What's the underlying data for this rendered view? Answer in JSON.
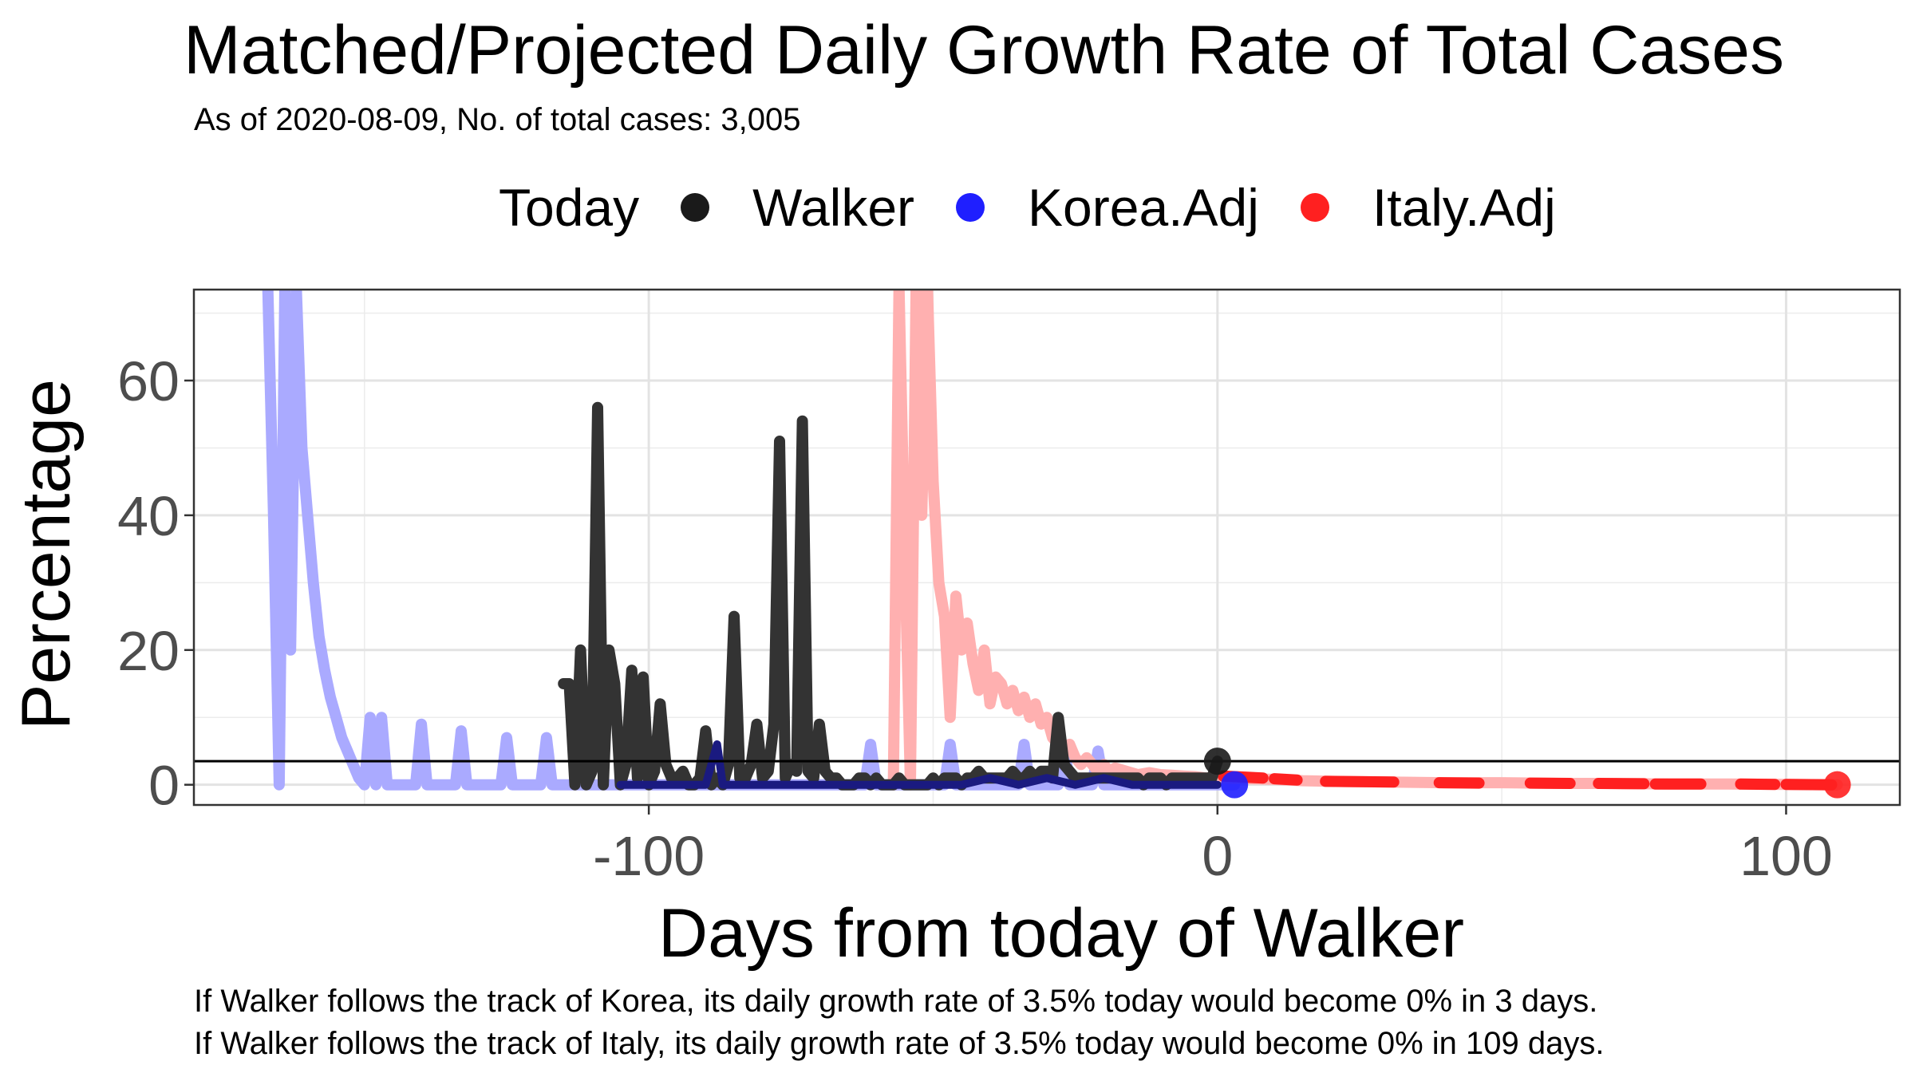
{
  "chart_data": {
    "type": "line",
    "title": "Matched/Projected Daily Growth Rate of Total Cases",
    "subtitle": "As of 2020-08-09, No. of total cases: 3,005",
    "xlabel": "Days from today of Walker",
    "ylabel": "Percentage",
    "xlim": [
      -180,
      120
    ],
    "ylim": [
      -3,
      73.5
    ],
    "x_ticks": [
      -100,
      0,
      100
    ],
    "x_tick_labels": [
      "-100",
      "0",
      "100"
    ],
    "y_ticks": [
      0,
      20,
      40,
      60
    ],
    "y_tick_labels": [
      "0",
      "20",
      "40",
      "60"
    ],
    "grid": true,
    "legend": {
      "title": "Today",
      "placement": "top",
      "entries": [
        {
          "label": "Walker",
          "color": "#1a1a1a"
        },
        {
          "label": "Korea.Adj",
          "color": "#1f1fff"
        },
        {
          "label": "Italy.Adj",
          "color": "#ff2020"
        }
      ]
    },
    "reference_line": {
      "y": 3.5
    },
    "today_points": [
      {
        "series": "Walker",
        "x": 0,
        "y": 3.5,
        "color": "#1a1a1a"
      },
      {
        "series": "Korea.Adj",
        "x": 3,
        "y": 0,
        "color": "#1f1fff"
      },
      {
        "series": "Italy.Adj",
        "x": 109,
        "y": 0,
        "color": "#ff2020"
      }
    ],
    "series": [
      {
        "name": "Korea.Adj",
        "color": "#aaaaff",
        "points": [
          [
            -167,
            75
          ],
          [
            -166,
            40
          ],
          [
            -165,
            0
          ],
          [
            -164,
            75
          ],
          [
            -163,
            20
          ],
          [
            -162,
            75
          ],
          [
            -161,
            50
          ],
          [
            -160,
            40
          ],
          [
            -159,
            30
          ],
          [
            -158,
            22
          ],
          [
            -157,
            17
          ],
          [
            -156,
            13
          ],
          [
            -155,
            10
          ],
          [
            -154,
            7
          ],
          [
            -153,
            5
          ],
          [
            -152,
            3
          ],
          [
            -151,
            1
          ],
          [
            -150,
            0
          ],
          [
            -149,
            10
          ],
          [
            -148,
            0
          ],
          [
            -147,
            10
          ],
          [
            -146,
            0
          ],
          [
            -145,
            0
          ],
          [
            -144,
            0
          ],
          [
            -143,
            0
          ],
          [
            -142,
            0
          ],
          [
            -141,
            0
          ],
          [
            -140,
            9
          ],
          [
            -139,
            0
          ],
          [
            -138,
            0
          ],
          [
            -137,
            0
          ],
          [
            -136,
            0
          ],
          [
            -135,
            0
          ],
          [
            -134,
            0
          ],
          [
            -133,
            8
          ],
          [
            -132,
            0
          ],
          [
            -131,
            0
          ],
          [
            -130,
            0
          ],
          [
            -129,
            0
          ],
          [
            -128,
            0
          ],
          [
            -127,
            0
          ],
          [
            -126,
            0
          ],
          [
            -125,
            7
          ],
          [
            -124,
            0
          ],
          [
            -123,
            0
          ],
          [
            -122,
            0
          ],
          [
            -121,
            0
          ],
          [
            -120,
            0
          ],
          [
            -119,
            0
          ],
          [
            -118,
            7
          ],
          [
            -117,
            0
          ],
          [
            -116,
            0
          ],
          [
            -115,
            0
          ],
          [
            -110,
            0
          ],
          [
            -105,
            0
          ],
          [
            -100,
            0
          ],
          [
            -95,
            0
          ],
          [
            -90,
            0
          ],
          [
            -85,
            0
          ],
          [
            -80,
            0
          ],
          [
            -75,
            0
          ],
          [
            -70,
            0
          ],
          [
            -65,
            0
          ],
          [
            -62,
            0
          ],
          [
            -61,
            6
          ],
          [
            -60,
            0
          ],
          [
            -55,
            0
          ],
          [
            -50,
            0
          ],
          [
            -48,
            0
          ],
          [
            -47,
            6
          ],
          [
            -46,
            0
          ],
          [
            -40,
            0
          ],
          [
            -35,
            0
          ],
          [
            -34,
            6
          ],
          [
            -33,
            0
          ],
          [
            -28,
            0
          ],
          [
            -27,
            6
          ],
          [
            -26,
            0
          ],
          [
            -22,
            0
          ],
          [
            -21,
            5
          ],
          [
            -20,
            0
          ],
          [
            -15,
            0
          ],
          [
            -10,
            0
          ],
          [
            -5,
            0
          ],
          [
            0,
            0
          ],
          [
            3,
            0
          ]
        ]
      },
      {
        "name": "Italy.Adj",
        "color": "#ffb0b0",
        "points": [
          [
            -57,
            0
          ],
          [
            -56,
            75
          ],
          [
            -55,
            35
          ],
          [
            -54,
            0
          ],
          [
            -53,
            75
          ],
          [
            -52,
            40
          ],
          [
            -51,
            75
          ],
          [
            -50,
            45
          ],
          [
            -49,
            30
          ],
          [
            -48,
            25
          ],
          [
            -47,
            10
          ],
          [
            -46,
            28
          ],
          [
            -45,
            20
          ],
          [
            -44,
            24
          ],
          [
            -43,
            18
          ],
          [
            -42,
            14
          ],
          [
            -41,
            20
          ],
          [
            -40,
            12
          ],
          [
            -39,
            16
          ],
          [
            -38,
            15
          ],
          [
            -37,
            12
          ],
          [
            -36,
            14
          ],
          [
            -35,
            11
          ],
          [
            -34,
            13
          ],
          [
            -33,
            10
          ],
          [
            -32,
            12
          ],
          [
            -31,
            9
          ],
          [
            -30,
            10
          ],
          [
            -29,
            7
          ],
          [
            -28,
            6
          ],
          [
            -27,
            5
          ],
          [
            -26,
            6
          ],
          [
            -25,
            4
          ],
          [
            -24,
            3
          ],
          [
            -23,
            4
          ],
          [
            -22,
            3
          ],
          [
            -21,
            2
          ],
          [
            -20,
            3
          ],
          [
            -19,
            2
          ],
          [
            -18,
            2.5
          ],
          [
            -16,
            2
          ],
          [
            -14,
            1.5
          ],
          [
            -12,
            1.8
          ],
          [
            -10,
            1.5
          ],
          [
            -8,
            1.4
          ],
          [
            -6,
            1.3
          ],
          [
            -4,
            1.2
          ],
          [
            -2,
            1.0
          ],
          [
            0,
            1.0
          ],
          [
            5,
            0.9
          ],
          [
            10,
            0.8
          ],
          [
            15,
            0.6
          ],
          [
            20,
            0.5
          ],
          [
            30,
            0.4
          ],
          [
            40,
            0.3
          ],
          [
            50,
            0.3
          ],
          [
            60,
            0.2
          ],
          [
            70,
            0.2
          ],
          [
            80,
            0.1
          ],
          [
            90,
            0.1
          ],
          [
            100,
            0.05
          ],
          [
            109,
            0
          ]
        ]
      },
      {
        "name": "Italy.Adj projection",
        "color": "#ff2020",
        "segments": [
          [
            [
              1,
              1.3
            ],
            [
              8,
              1.0
            ]
          ],
          [
            [
              10,
              0.9
            ],
            [
              14,
              0.7
            ]
          ],
          [
            [
              19,
              0.5
            ],
            [
              31,
              0.4
            ]
          ],
          [
            [
              39,
              0.3
            ],
            [
              46,
              0.25
            ]
          ],
          [
            [
              55,
              0.25
            ],
            [
              62,
              0.2
            ]
          ],
          [
            [
              67,
              0.2
            ],
            [
              75,
              0.15
            ]
          ],
          [
            [
              77,
              0.1
            ],
            [
              85,
              0.1
            ]
          ],
          [
            [
              92,
              0.1
            ],
            [
              98,
              0.05
            ]
          ],
          [
            [
              100,
              0.05
            ],
            [
              108,
              0
            ]
          ]
        ]
      },
      {
        "name": "Walker",
        "color": "#333333",
        "points": [
          [
            -115,
            15
          ],
          [
            -114,
            15
          ],
          [
            -113,
            0
          ],
          [
            -112,
            20
          ],
          [
            -111,
            0
          ],
          [
            -110,
            2
          ],
          [
            -109,
            56
          ],
          [
            -108,
            0
          ],
          [
            -107,
            20
          ],
          [
            -106,
            15
          ],
          [
            -105,
            0
          ],
          [
            -104,
            3
          ],
          [
            -103,
            17
          ],
          [
            -102,
            1
          ],
          [
            -101,
            16
          ],
          [
            -100,
            0
          ],
          [
            -99,
            2
          ],
          [
            -98,
            12
          ],
          [
            -97,
            3
          ],
          [
            -96,
            1
          ],
          [
            -95,
            1
          ],
          [
            -94,
            2
          ],
          [
            -93,
            0
          ],
          [
            -92,
            0
          ],
          [
            -91,
            1
          ],
          [
            -90,
            8
          ],
          [
            -89,
            0
          ],
          [
            -88,
            1
          ],
          [
            -87,
            0
          ],
          [
            -86,
            3
          ],
          [
            -85,
            25
          ],
          [
            -84,
            1
          ],
          [
            -83,
            1
          ],
          [
            -82,
            3
          ],
          [
            -81,
            9
          ],
          [
            -80,
            1
          ],
          [
            -79,
            2
          ],
          [
            -78,
            9
          ],
          [
            -77,
            51
          ],
          [
            -76,
            1
          ],
          [
            -75,
            3
          ],
          [
            -74,
            2
          ],
          [
            -73,
            54
          ],
          [
            -72,
            2
          ],
          [
            -71,
            1
          ],
          [
            -70,
            9
          ],
          [
            -69,
            2
          ],
          [
            -68,
            1
          ],
          [
            -67,
            1
          ],
          [
            -66,
            0
          ],
          [
            -65,
            0
          ],
          [
            -64,
            0
          ],
          [
            -63,
            1
          ],
          [
            -62,
            1
          ],
          [
            -61,
            0
          ],
          [
            -60,
            1
          ],
          [
            -59,
            0
          ],
          [
            -58,
            0
          ],
          [
            -57,
            0
          ],
          [
            -56,
            1
          ],
          [
            -55,
            0
          ],
          [
            -54,
            0
          ],
          [
            -53,
            0
          ],
          [
            -52,
            0
          ],
          [
            -51,
            0
          ],
          [
            -50,
            1
          ],
          [
            -49,
            0
          ],
          [
            -48,
            1
          ],
          [
            -47,
            1
          ],
          [
            -46,
            1
          ],
          [
            -45,
            0
          ],
          [
            -44,
            1
          ],
          [
            -43,
            1
          ],
          [
            -42,
            2
          ],
          [
            -41,
            1
          ],
          [
            -40,
            1
          ],
          [
            -39,
            1
          ],
          [
            -38,
            1
          ],
          [
            -37,
            1
          ],
          [
            -36,
            2
          ],
          [
            -35,
            1
          ],
          [
            -34,
            1
          ],
          [
            -33,
            2
          ],
          [
            -32,
            1
          ],
          [
            -31,
            2
          ],
          [
            -30,
            2
          ],
          [
            -29,
            1
          ],
          [
            -28,
            10
          ],
          [
            -27,
            3
          ],
          [
            -26,
            2
          ],
          [
            -25,
            1
          ],
          [
            -24,
            1
          ],
          [
            -23,
            1
          ],
          [
            -22,
            1
          ],
          [
            -21,
            1
          ],
          [
            -20,
            1
          ],
          [
            -19,
            1
          ],
          [
            -18,
            1
          ],
          [
            -17,
            1
          ],
          [
            -16,
            1
          ],
          [
            -15,
            1
          ],
          [
            -14,
            1
          ],
          [
            -13,
            0
          ],
          [
            -12,
            1
          ],
          [
            -11,
            1
          ],
          [
            -10,
            1
          ],
          [
            -9,
            0
          ],
          [
            -8,
            1
          ],
          [
            -7,
            1
          ],
          [
            -6,
            1
          ],
          [
            -5,
            1
          ],
          [
            -4,
            1
          ],
          [
            -3,
            1
          ],
          [
            -2,
            1
          ],
          [
            -1,
            1
          ],
          [
            0,
            3.5
          ]
        ]
      },
      {
        "name": "Korea.Adj matched",
        "color": "#1a1a80",
        "points": [
          [
            -105,
            0
          ],
          [
            -100,
            0
          ],
          [
            -95,
            0
          ],
          [
            -90,
            0
          ],
          [
            -88,
            6
          ],
          [
            -87,
            0
          ],
          [
            -80,
            0
          ],
          [
            -75,
            0
          ],
          [
            -70,
            0
          ],
          [
            -65,
            0
          ],
          [
            -60,
            0
          ],
          [
            -55,
            0
          ],
          [
            -50,
            0
          ],
          [
            -45,
            0
          ],
          [
            -40,
            1
          ],
          [
            -35,
            0
          ],
          [
            -30,
            1
          ],
          [
            -25,
            0
          ],
          [
            -20,
            1
          ],
          [
            -15,
            0
          ],
          [
            -10,
            0
          ],
          [
            -5,
            0
          ],
          [
            0,
            0
          ]
        ]
      }
    ]
  },
  "notes": [
    "If Walker follows the track of Korea, its daily growth rate of 3.5% today would become 0% in 3 days.",
    "If Walker follows the track of Italy, its daily growth rate of 3.5% today would become 0% in 109 days."
  ]
}
